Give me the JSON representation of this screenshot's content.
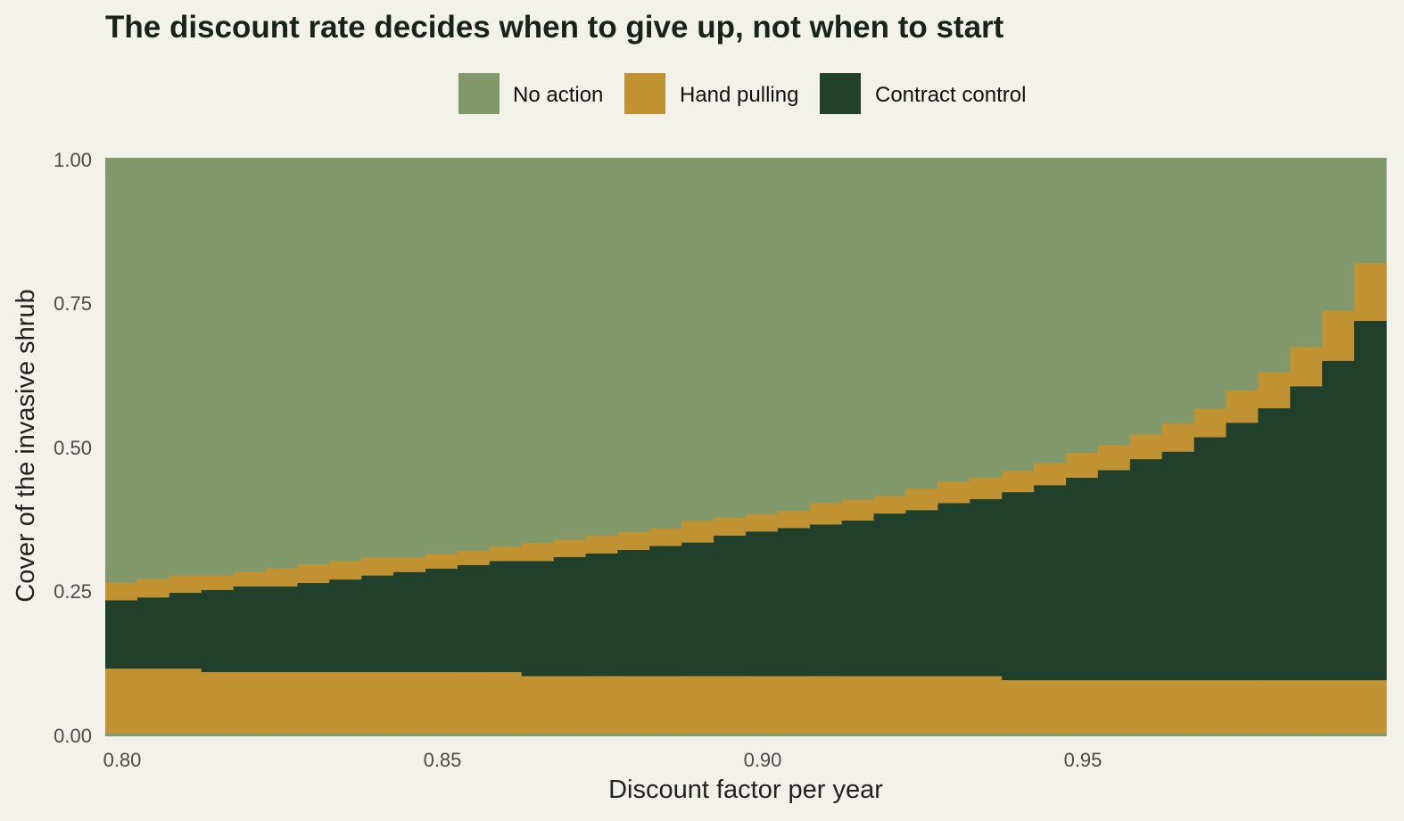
{
  "colors": {
    "background": "#f2f1ea",
    "no_action": "#82996c",
    "hand_pulling": "#c09232",
    "contract_control": "#20402c",
    "title": "#17231b"
  },
  "chart_data": {
    "type": "area",
    "title": "The discount rate decides when to give up, not when to start",
    "xlabel": "Discount factor per year",
    "ylabel": "Cover of the invasive shrub",
    "xlim": [
      0.8,
      1.0
    ],
    "ylim": [
      0,
      1
    ],
    "x_ticks": [
      "0.80",
      "0.85",
      "0.90",
      "0.95"
    ],
    "x_tick_values": [
      0.8,
      0.85,
      0.9,
      0.95
    ],
    "y_ticks": [
      "0.00",
      "0.25",
      "0.50",
      "0.75",
      "1.00"
    ],
    "y_tick_values": [
      0,
      0.25,
      0.5,
      0.75,
      1.0
    ],
    "grid": false,
    "legend_position": "top",
    "legend": [
      {
        "key": "no_action",
        "label": "No action"
      },
      {
        "key": "hand_pulling",
        "label": "Hand pulling"
      },
      {
        "key": "contract_control",
        "label": "Contract control"
      }
    ],
    "x": [
      0.8,
      0.805,
      0.81,
      0.815,
      0.82,
      0.825,
      0.83,
      0.835,
      0.84,
      0.845,
      0.85,
      0.855,
      0.86,
      0.865,
      0.87,
      0.875,
      0.88,
      0.885,
      0.89,
      0.895,
      0.9,
      0.905,
      0.91,
      0.915,
      0.92,
      0.925,
      0.93,
      0.935,
      0.94,
      0.945,
      0.95,
      0.955,
      0.96,
      0.965,
      0.97,
      0.975,
      0.98,
      0.985,
      0.99,
      0.995
    ],
    "boundaries": {
      "no_action_lower_below": 0.005,
      "hand_pulling_low_top": [
        0.117,
        0.117,
        0.117,
        0.111,
        0.111,
        0.111,
        0.111,
        0.111,
        0.111,
        0.111,
        0.111,
        0.111,
        0.111,
        0.104,
        0.104,
        0.104,
        0.104,
        0.104,
        0.104,
        0.104,
        0.104,
        0.104,
        0.104,
        0.104,
        0.104,
        0.104,
        0.104,
        0.104,
        0.097,
        0.097,
        0.097,
        0.097,
        0.097,
        0.097,
        0.097,
        0.097,
        0.097,
        0.097,
        0.097,
        0.097
      ],
      "contract_control_top": [
        0.235,
        0.24,
        0.248,
        0.253,
        0.259,
        0.259,
        0.265,
        0.271,
        0.278,
        0.284,
        0.29,
        0.296,
        0.303,
        0.303,
        0.31,
        0.316,
        0.322,
        0.329,
        0.335,
        0.347,
        0.354,
        0.36,
        0.366,
        0.373,
        0.385,
        0.391,
        0.403,
        0.41,
        0.422,
        0.434,
        0.447,
        0.46,
        0.479,
        0.492,
        0.517,
        0.542,
        0.567,
        0.605,
        0.649,
        0.718
      ],
      "hand_pulling_high_top": [
        0.266,
        0.272,
        0.278,
        0.278,
        0.284,
        0.29,
        0.297,
        0.303,
        0.309,
        0.309,
        0.315,
        0.321,
        0.328,
        0.334,
        0.34,
        0.347,
        0.353,
        0.359,
        0.372,
        0.378,
        0.384,
        0.39,
        0.403,
        0.409,
        0.415,
        0.428,
        0.44,
        0.447,
        0.459,
        0.472,
        0.49,
        0.503,
        0.522,
        0.541,
        0.566,
        0.598,
        0.629,
        0.673,
        0.736,
        0.818
      ]
    }
  }
}
